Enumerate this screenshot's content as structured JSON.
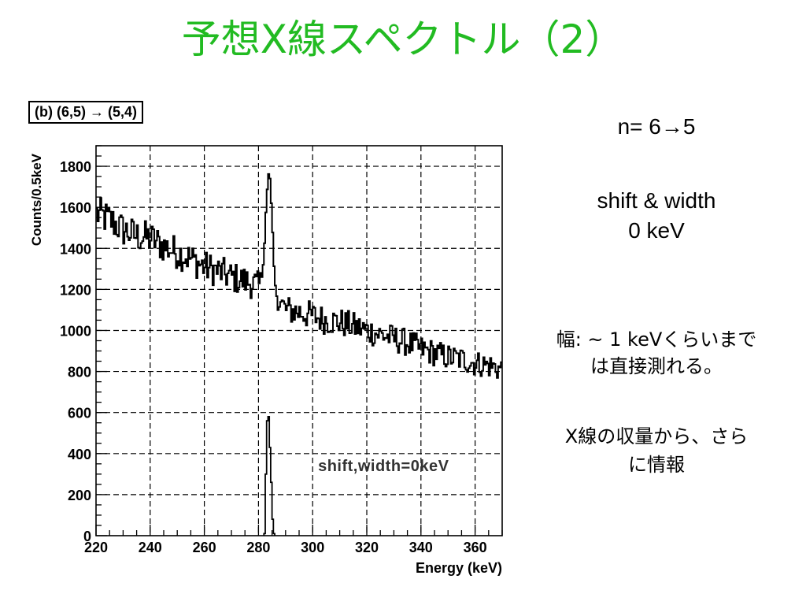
{
  "slide": {
    "title": "予想X線スペクトル（2）",
    "panel_label": "(b) (6,5) → (5,4)"
  },
  "side_notes": {
    "transition": "n= 6→5",
    "shift_line1": "shift & width",
    "shift_line2": "0 keV",
    "width_line1": "幅: ~ 1 keVくらいまで",
    "width_line2": "は直接測れる。",
    "yield_line1": "X線の収量から、さら",
    "yield_line2": "に情報"
  },
  "colors": {
    "title": "#22bb22",
    "axes": "#000000",
    "series": "#000000"
  },
  "chart_data": [
    {
      "type": "line",
      "subtype": "histogram",
      "xlabel": "Energy (keV)",
      "ylabel": "Counts/0.5keV",
      "xlim": [
        220,
        370
      ],
      "ylim": [
        0,
        1900
      ],
      "xticks": [
        220,
        240,
        260,
        280,
        300,
        320,
        340,
        360
      ],
      "yticks": [
        0,
        200,
        400,
        600,
        800,
        1000,
        1200,
        1400,
        1600,
        1800
      ],
      "grid": true,
      "bin_width": 0.5,
      "annotation": "shift,width=0keV",
      "series": [
        {
          "x": [
            220,
            225,
            230,
            235,
            240,
            245,
            250,
            255,
            260,
            265,
            270,
            275,
            278,
            280,
            281,
            282,
            283,
            284,
            285,
            286,
            288,
            290,
            295,
            300,
            305,
            310,
            315,
            320,
            325,
            330,
            335,
            340,
            345,
            350,
            355,
            360,
            365,
            370
          ],
          "values": [
            1570,
            1540,
            1490,
            1460,
            1450,
            1410,
            1380,
            1350,
            1310,
            1290,
            1260,
            1240,
            1230,
            1210,
            1230,
            1350,
            1650,
            1800,
            1560,
            1230,
            1140,
            1100,
            1090,
            1070,
            1050,
            1040,
            1020,
            1000,
            980,
            960,
            940,
            910,
            890,
            870,
            860,
            840,
            830,
            810
          ]
        },
        {
          "x": [
            282,
            282.5,
            283,
            283.5,
            284,
            284.5,
            285,
            285.5
          ],
          "values": [
            10,
            300,
            560,
            580,
            430,
            260,
            80,
            10
          ]
        }
      ]
    }
  ]
}
